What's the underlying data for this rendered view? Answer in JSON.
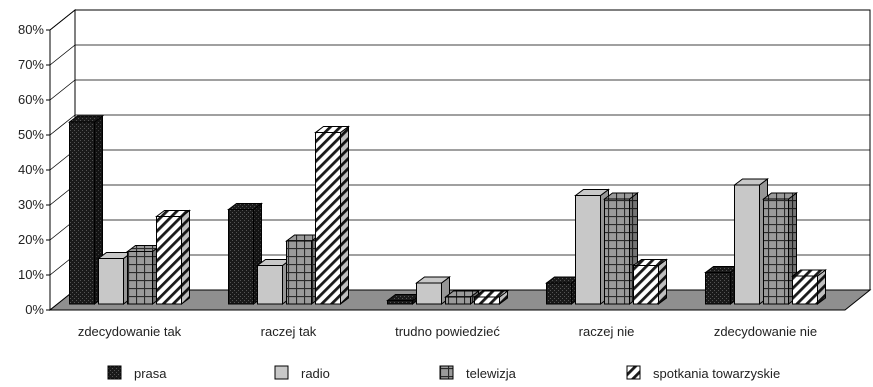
{
  "chart_data": {
    "type": "bar",
    "categories": [
      "zdecydowanie tak",
      "raczej tak",
      "trudno powiedzieć",
      "raczej nie",
      "zdecydowanie nie"
    ],
    "series": [
      {
        "name": "prasa",
        "values": [
          52,
          27,
          1,
          6,
          9
        ]
      },
      {
        "name": "radio",
        "values": [
          13,
          11,
          6,
          31,
          34
        ]
      },
      {
        "name": "telewizja",
        "values": [
          15,
          18,
          2,
          30,
          30
        ]
      },
      {
        "name": "spotkania towarzyskie",
        "values": [
          25,
          49,
          2,
          11,
          8
        ]
      }
    ],
    "y_ticks": [
      "0%",
      "10%",
      "20%",
      "30%",
      "40%",
      "50%",
      "60%",
      "70%",
      "80%"
    ],
    "ylim": [
      0,
      80
    ],
    "grid": true,
    "legend_position": "bottom",
    "three_d": true
  }
}
